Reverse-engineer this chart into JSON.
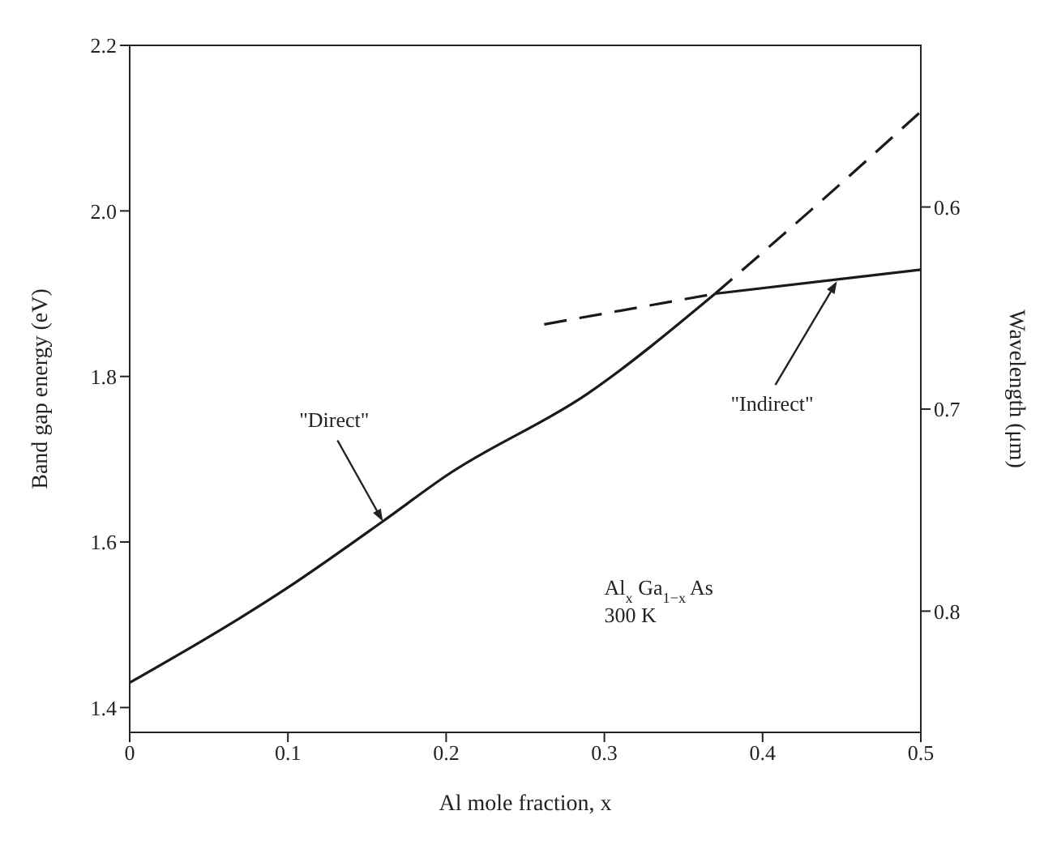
{
  "chart_data": {
    "type": "line",
    "xlabel": "Al mole fraction, x",
    "ylabel": "Band gap energy (eV)",
    "y2label": "Wavelength (μm)",
    "xlim": [
      0,
      0.5
    ],
    "xticks": [
      0,
      0.1,
      0.2,
      0.3,
      0.4,
      0.5
    ],
    "ylim": [
      1.37,
      2.2
    ],
    "yticks": [
      1.4,
      1.6,
      1.8,
      {
        "value": 2,
        "label": "2.0"
      },
      2.2
    ],
    "y2lim": [
      0.86,
      0.52
    ],
    "y2ticks": [
      0.6,
      0.7,
      0.8
    ],
    "marker": "none",
    "series": [
      {
        "color": "#1a1a1a",
        "line_style": "solid",
        "x": [
          0,
          0.1,
          0.16,
          0.2,
          0.29,
          0.37
        ],
        "values": [
          1.43,
          1.545,
          1.625,
          1.68,
          1.78,
          1.9
        ]
      },
      {
        "color": "#1a1a1a",
        "line_style": "dashed",
        "x": [
          0.37,
          0.43,
          0.5
        ],
        "values": [
          1.9,
          2.0,
          2.12
        ]
      },
      {
        "color": "#1a1a1a",
        "line_style": "dashed",
        "x": [
          0.262,
          0.37
        ],
        "values": [
          1.863,
          1.9
        ]
      },
      {
        "color": "#1a1a1a",
        "line_style": "solid",
        "x": [
          0.37,
          0.5
        ],
        "values": [
          1.9,
          1.929
        ]
      }
    ],
    "annotations": [
      {
        "text": "\"Direct\"",
        "x": 0.16,
        "y": 1.625
      },
      {
        "text": "\"Indirect\"",
        "x": 0.447,
        "y": 1.915
      },
      "Al$_{x}$ Ga$_{1−x}$ As",
      "300 K"
    ]
  }
}
